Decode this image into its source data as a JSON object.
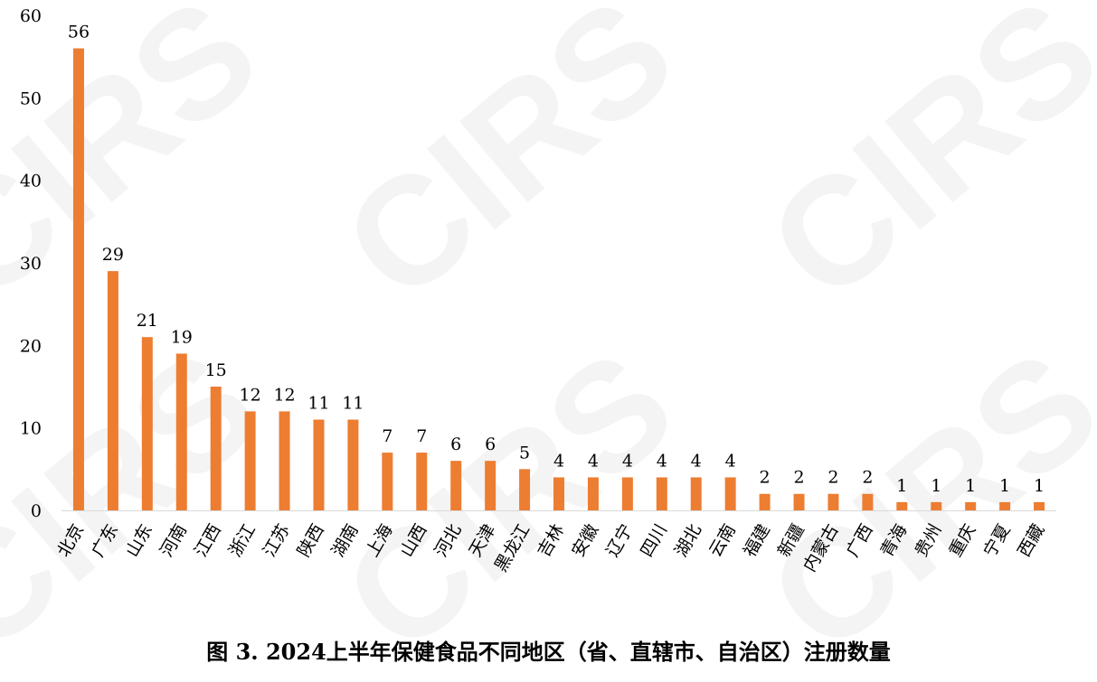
{
  "caption": "图 3. 2024上半年保健食品不同地区（省、直辖市、自治区）注册数量",
  "watermark": "CIRS",
  "colors": {
    "bar": "#ED7D31",
    "axis": "#d9d9d9",
    "text": "#000000"
  },
  "chart_data": {
    "type": "bar",
    "title": "",
    "xlabel": "",
    "ylabel": "",
    "ylim": [
      0,
      60
    ],
    "yticks": [
      0,
      10,
      20,
      30,
      40,
      50,
      60
    ],
    "grid": false,
    "legend": "none",
    "data_labels": true,
    "categories": [
      "北京",
      "广东",
      "山东",
      "河南",
      "江西",
      "浙江",
      "江苏",
      "陕西",
      "湖南",
      "上海",
      "山西",
      "河北",
      "天津",
      "黑龙江",
      "吉林",
      "安徽",
      "辽宁",
      "四川",
      "湖北",
      "云南",
      "福建",
      "新疆",
      "内蒙古",
      "广西",
      "青海",
      "贵州",
      "重庆",
      "宁夏",
      "西藏"
    ],
    "values": [
      56,
      29,
      21,
      19,
      15,
      12,
      12,
      11,
      11,
      7,
      7,
      6,
      6,
      5,
      4,
      4,
      4,
      4,
      4,
      4,
      2,
      2,
      2,
      2,
      1,
      1,
      1,
      1,
      1
    ]
  }
}
